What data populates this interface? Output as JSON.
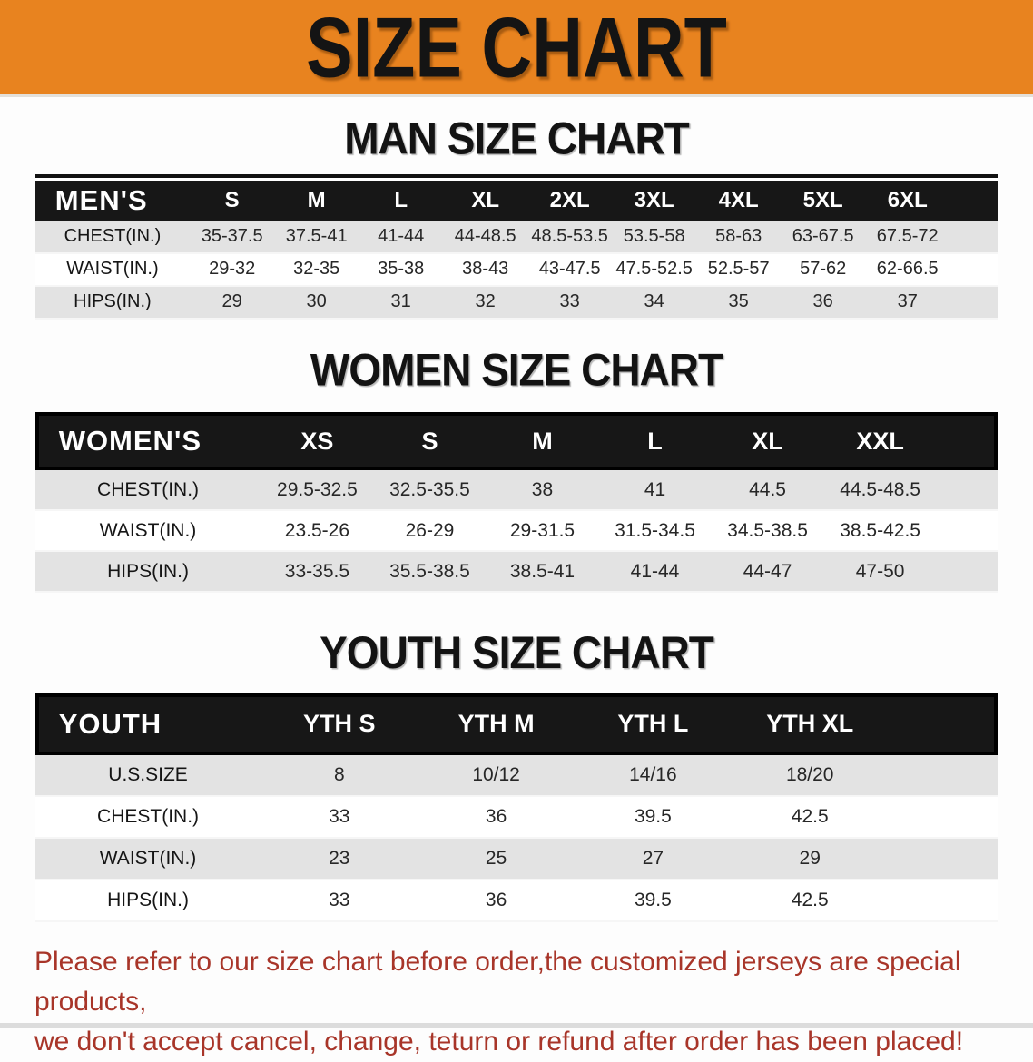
{
  "banner": {
    "title": "SIZE CHART"
  },
  "colors": {
    "banner_bg": "#e8831f",
    "header_bg": "#171717",
    "stripe": "#e3e3e3",
    "disclaimer_red": "#a83529"
  },
  "sections": [
    {
      "heading": "MAN SIZE CHART",
      "table": {
        "header": [
          "MEN'S",
          "S",
          "M",
          "L",
          "XL",
          "2XL",
          "3XL",
          "4XL",
          "5XL",
          "6XL"
        ],
        "rows": [
          {
            "label": "CHEST(IN.)",
            "values": [
              "35-37.5",
              "37.5-41",
              "41-44",
              "44-48.5",
              "48.5-53.5",
              "53.5-58",
              "58-63",
              "63-67.5",
              "67.5-72"
            ]
          },
          {
            "label": "WAIST(IN.)",
            "values": [
              "29-32",
              "32-35",
              "35-38",
              "38-43",
              "43-47.5",
              "47.5-52.5",
              "52.5-57",
              "57-62",
              "62-66.5"
            ]
          },
          {
            "label": "HIPS(IN.)",
            "values": [
              "29",
              "30",
              "31",
              "32",
              "33",
              "34",
              "35",
              "36",
              "37"
            ]
          }
        ]
      }
    },
    {
      "heading": "WOMEN SIZE CHART",
      "table": {
        "header": [
          "WOMEN'S",
          "XS",
          "S",
          "M",
          "L",
          "XL",
          "XXL"
        ],
        "rows": [
          {
            "label": "CHEST(IN.)",
            "values": [
              "29.5-32.5",
              "32.5-35.5",
              "38",
              "41",
              "44.5",
              "44.5-48.5"
            ]
          },
          {
            "label": "WAIST(IN.)",
            "values": [
              "23.5-26",
              "26-29",
              "29-31.5",
              "31.5-34.5",
              "34.5-38.5",
              "38.5-42.5"
            ]
          },
          {
            "label": "HIPS(IN.)",
            "values": [
              "33-35.5",
              "35.5-38.5",
              "38.5-41",
              "41-44",
              "44-47",
              "47-50"
            ]
          }
        ]
      }
    },
    {
      "heading": "YOUTH SIZE CHART",
      "table": {
        "header": [
          "YOUTH",
          "YTH S",
          "YTH M",
          "YTH L",
          "YTH XL"
        ],
        "rows": [
          {
            "label": "U.S.SIZE",
            "values": [
              "8",
              "10/12",
              "14/16",
              "18/20"
            ]
          },
          {
            "label": "CHEST(IN.)",
            "values": [
              "33",
              "36",
              "39.5",
              "42.5"
            ]
          },
          {
            "label": "WAIST(IN.)",
            "values": [
              "23",
              "25",
              "27",
              "29"
            ]
          },
          {
            "label": "HIPS(IN.)",
            "values": [
              "33",
              "36",
              "39.5",
              "42.5"
            ]
          }
        ]
      }
    }
  ],
  "disclaimer": {
    "line1": "Please refer to our size chart before order,the customized jerseys are special products,",
    "line2": "we don't accept cancel, change, teturn or refund after order has been placed!"
  }
}
